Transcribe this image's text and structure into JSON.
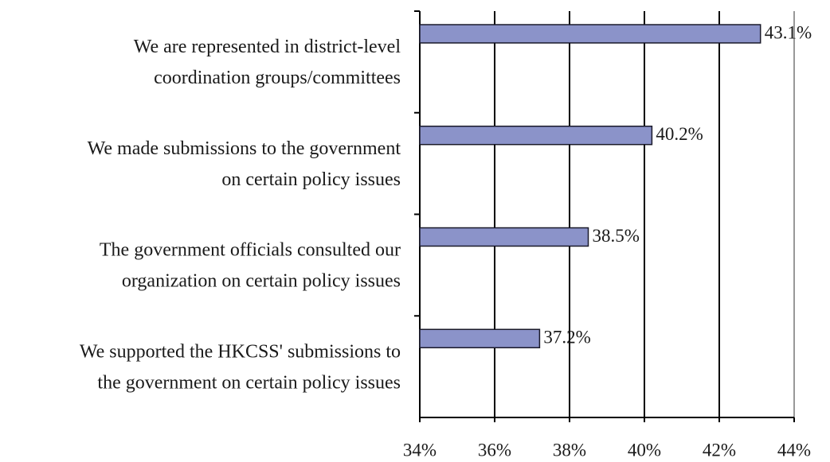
{
  "chart_data": {
    "type": "bar",
    "orientation": "horizontal",
    "categories": [
      "We are represented in district-level\ncoordination groups/committees",
      "We made submissions to the government\non certain policy issues",
      "The government officials consulted our\norganization on certain policy issues",
      "We supported the HKCSS' submissions to\nthe government on certain policy issues"
    ],
    "values": [
      43.1,
      40.2,
      38.5,
      37.2
    ],
    "value_labels": [
      "43.1%",
      "40.2%",
      "38.5%",
      "37.2%"
    ],
    "color": "#8b93c9",
    "xlim": [
      34,
      44
    ],
    "xticks": [
      {
        "value": 34,
        "label": "34%"
      },
      {
        "value": 36,
        "label": "36%"
      },
      {
        "value": 38,
        "label": "38%"
      },
      {
        "value": 40,
        "label": "40%"
      },
      {
        "value": 42,
        "label": "42%"
      },
      {
        "value": 44,
        "label": "44%"
      }
    ],
    "grid": true
  }
}
